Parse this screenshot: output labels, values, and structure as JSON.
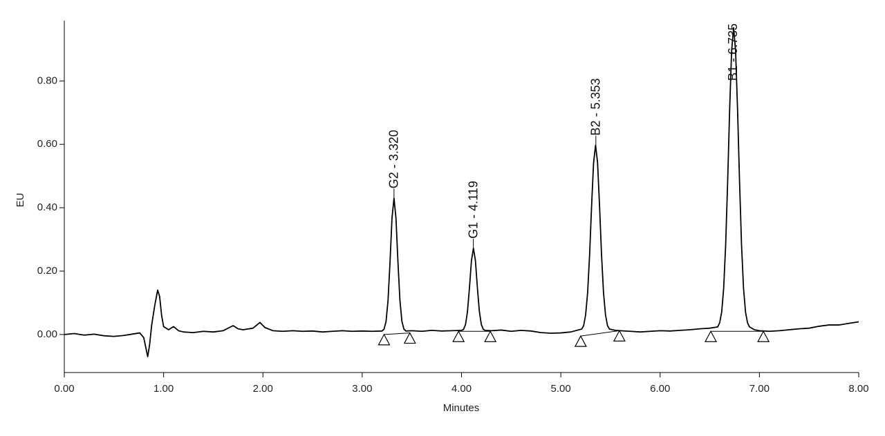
{
  "chart_data": {
    "type": "line",
    "x_label": "Minutes",
    "y_label": "EU",
    "color": "#000000",
    "xlim": [
      0,
      8
    ],
    "ylim": [
      -0.12,
      0.99
    ],
    "xticks": [
      {
        "value": 0,
        "label": "0.00"
      },
      {
        "value": 1,
        "label": "1.00"
      },
      {
        "value": 2,
        "label": "2.00"
      },
      {
        "value": 3,
        "label": "3.00"
      },
      {
        "value": 4,
        "label": "4.00"
      },
      {
        "value": 5,
        "label": "5.00"
      },
      {
        "value": 6,
        "label": "6.00"
      },
      {
        "value": 7,
        "label": "7.00"
      },
      {
        "value": 8,
        "label": "8.00"
      }
    ],
    "yticks": [
      {
        "value": 0,
        "label": "0.00"
      },
      {
        "value": 0.2,
        "label": "0.20"
      },
      {
        "value": 0.4,
        "label": "0.40"
      },
      {
        "value": 0.6,
        "label": "0.60"
      },
      {
        "value": 0.8,
        "label": "0.80"
      }
    ],
    "x": [
      0,
      0.1,
      0.2,
      0.3,
      0.4,
      0.5,
      0.6,
      0.7,
      0.76,
      0.8,
      0.82,
      0.84,
      0.86,
      0.88,
      0.91,
      0.94,
      0.96,
      0.98,
      1.0,
      1.05,
      1.1,
      1.15,
      1.2,
      1.3,
      1.4,
      1.5,
      1.6,
      1.7,
      1.75,
      1.8,
      1.9,
      1.97,
      2.02,
      2.1,
      2.2,
      2.3,
      2.4,
      2.5,
      2.6,
      2.7,
      2.8,
      2.9,
      3.0,
      3.1,
      3.2,
      3.22,
      3.24,
      3.26,
      3.28,
      3.3,
      3.32,
      3.34,
      3.36,
      3.38,
      3.4,
      3.42,
      3.44,
      3.5,
      3.6,
      3.7,
      3.8,
      3.9,
      4.0,
      4.02,
      4.04,
      4.06,
      4.08,
      4.1,
      4.12,
      4.14,
      4.16,
      4.18,
      4.2,
      4.22,
      4.24,
      4.3,
      4.4,
      4.5,
      4.6,
      4.7,
      4.8,
      4.9,
      5.0,
      5.1,
      5.21,
      5.23,
      5.25,
      5.27,
      5.29,
      5.31,
      5.33,
      5.35,
      5.37,
      5.39,
      5.41,
      5.43,
      5.45,
      5.47,
      5.49,
      5.55,
      5.6,
      5.7,
      5.8,
      5.9,
      6.0,
      6.1,
      6.2,
      6.3,
      6.4,
      6.5,
      6.58,
      6.6,
      6.62,
      6.64,
      6.66,
      6.68,
      6.7,
      6.72,
      6.74,
      6.76,
      6.78,
      6.8,
      6.82,
      6.84,
      6.86,
      6.88,
      6.9,
      6.95,
      7.0,
      7.1,
      7.2,
      7.3,
      7.4,
      7.5,
      7.6,
      7.7,
      7.8,
      7.9,
      8.0
    ],
    "values": [
      0,
      0.003,
      -0.002,
      0.001,
      -0.004,
      -0.006,
      -0.003,
      0.002,
      0.005,
      -0.01,
      -0.04,
      -0.07,
      -0.03,
      0.03,
      0.09,
      0.14,
      0.12,
      0.06,
      0.025,
      0.015,
      0.025,
      0.012,
      0.008,
      0.006,
      0.01,
      0.008,
      0.012,
      0.028,
      0.018,
      0.015,
      0.02,
      0.038,
      0.022,
      0.012,
      0.01,
      0.012,
      0.01,
      0.011,
      0.008,
      0.01,
      0.012,
      0.01,
      0.011,
      0.01,
      0.011,
      0.017,
      0.041,
      0.107,
      0.228,
      0.367,
      0.43,
      0.367,
      0.228,
      0.107,
      0.041,
      0.017,
      0.011,
      0.012,
      0.01,
      0.013,
      0.011,
      0.012,
      0.013,
      0.016,
      0.031,
      0.072,
      0.147,
      0.233,
      0.272,
      0.233,
      0.147,
      0.072,
      0.031,
      0.016,
      0.013,
      0.012,
      0.014,
      0.01,
      0.013,
      0.011,
      0.006,
      0.004,
      0.005,
      0.008,
      0.017,
      0.028,
      0.062,
      0.132,
      0.252,
      0.406,
      0.542,
      0.597,
      0.542,
      0.406,
      0.252,
      0.132,
      0.062,
      0.028,
      0.017,
      0.013,
      0.012,
      0.01,
      0.008,
      0.01,
      0.012,
      0.011,
      0.013,
      0.015,
      0.018,
      0.02,
      0.024,
      0.037,
      0.071,
      0.146,
      0.282,
      0.481,
      0.708,
      0.895,
      0.968,
      0.895,
      0.708,
      0.481,
      0.282,
      0.146,
      0.071,
      0.037,
      0.024,
      0.015,
      0.012,
      0.01,
      0.012,
      0.015,
      0.018,
      0.02,
      0.026,
      0.03,
      0.03,
      0.035,
      0.04
    ],
    "peaks": [
      {
        "label": "G2 - 3.320",
        "time": 3.32,
        "apex": 0.43,
        "start": [
          3.22,
          0.0
        ],
        "end": [
          3.48,
          0.005
        ]
      },
      {
        "label": "G1 - 4.119",
        "time": 4.119,
        "apex": 0.272,
        "start": [
          3.97,
          0.01
        ],
        "end": [
          4.29,
          0.01
        ]
      },
      {
        "label": "B2 - 5.353",
        "time": 5.353,
        "apex": 0.597,
        "start": [
          5.2,
          -0.005
        ],
        "end": [
          5.59,
          0.012
        ]
      },
      {
        "label": "B1 - 6.735",
        "time": 6.735,
        "apex": 0.968,
        "start": [
          6.51,
          0.01
        ],
        "end": [
          7.04,
          0.01
        ]
      }
    ]
  }
}
